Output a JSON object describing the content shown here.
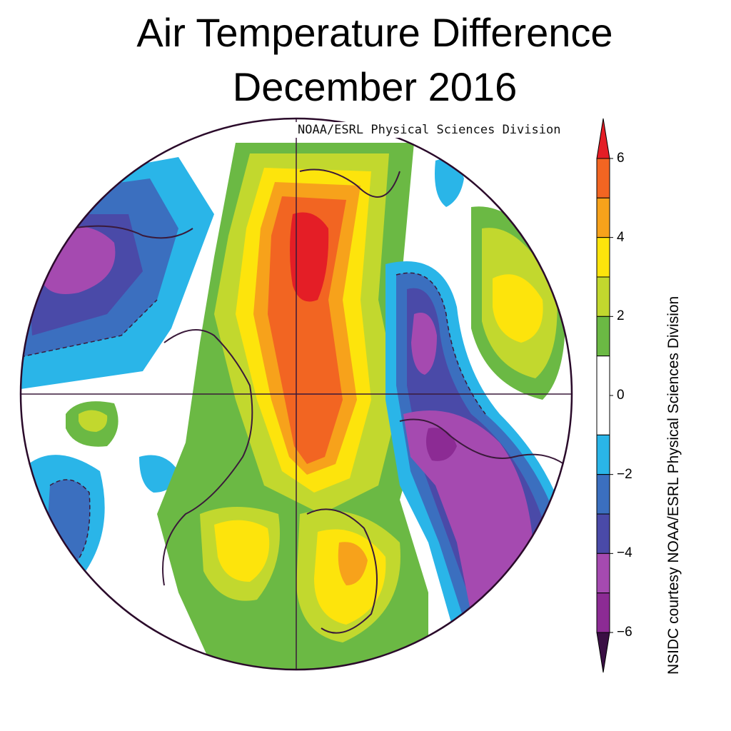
{
  "title_line1": "Air Temperature Difference",
  "title_line2": "December 2016",
  "credit_top": "NOAA/ESRL Physical Sciences Division",
  "credit_side": "NSIDC courtesy NOAA/ESRL Physical Sciences Division",
  "colorbar": {
    "ticks": [
      {
        "value": 6,
        "label": "6"
      },
      {
        "value": 4,
        "label": "4"
      },
      {
        "value": 2,
        "label": "2"
      },
      {
        "value": 0,
        "label": "0"
      },
      {
        "value": -2,
        "label": "−2"
      },
      {
        "value": -4,
        "label": "−4"
      },
      {
        "value": -6,
        "label": "−6"
      }
    ],
    "levels": [
      {
        "range": [
          6,
          7
        ],
        "color": "#e41e26"
      },
      {
        "range": [
          5,
          6
        ],
        "color": "#f26522"
      },
      {
        "range": [
          4,
          5
        ],
        "color": "#f7a21b"
      },
      {
        "range": [
          3,
          4
        ],
        "color": "#fde40c"
      },
      {
        "range": [
          2,
          3
        ],
        "color": "#c2d82e"
      },
      {
        "range": [
          1,
          2
        ],
        "color": "#6bb944"
      },
      {
        "range": [
          -1,
          1
        ],
        "color": "#ffffff"
      },
      {
        "range": [
          -2,
          -1
        ],
        "color": "#2ab5e8"
      },
      {
        "range": [
          -3,
          -2
        ],
        "color": "#3b6fbf"
      },
      {
        "range": [
          -4,
          -3
        ],
        "color": "#4a4aa8"
      },
      {
        "range": [
          -5,
          -4
        ],
        "color": "#a54ab0"
      },
      {
        "range": [
          -6,
          -5
        ],
        "color": "#8c2b94"
      },
      {
        "range": [
          -7,
          -6
        ],
        "color": "#3a0f44"
      }
    ]
  },
  "colors": {
    "coastline": "#3a1a3a",
    "map_border": "#2a0a2a"
  }
}
